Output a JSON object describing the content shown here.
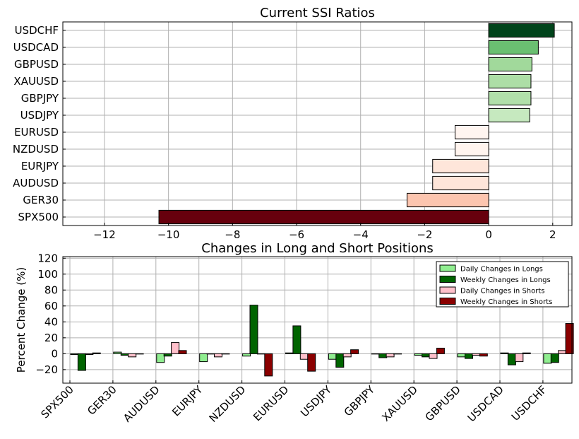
{
  "chart_data": [
    {
      "type": "bar",
      "orientation": "horizontal",
      "title": "Current SSI Ratios",
      "xlabel": "",
      "ylabel": "",
      "categories": [
        "USDCHF",
        "USDCAD",
        "GBPUSD",
        "XAUUSD",
        "GBPJPY",
        "USDJPY",
        "EURUSD",
        "NZDUSD",
        "EURJPY",
        "AUDUSD",
        "GER30",
        "SPX500"
      ],
      "values": [
        2.05,
        1.55,
        1.35,
        1.32,
        1.32,
        1.28,
        -1.05,
        -1.05,
        -1.75,
        -1.75,
        -2.55,
        -10.3
      ],
      "colors": [
        "#00441b",
        "#6abf71",
        "#a1d99b",
        "#addea6",
        "#b1e0aa",
        "#c6e9bf",
        "#fff5f0",
        "#fff4ee",
        "#fee6da",
        "#fee5d9",
        "#fcc5af",
        "#67000d"
      ],
      "xlim": [
        -13.3,
        2.6
      ],
      "xticks": [
        -12,
        -10,
        -8,
        -6,
        -4,
        -2,
        0,
        2
      ],
      "xtick_labels": [
        "−12",
        "−10",
        "−8",
        "−6",
        "−4",
        "−2",
        "0",
        "2"
      ],
      "grid": true
    },
    {
      "type": "bar",
      "title": "Changes in Long and Short Positions",
      "xlabel": "",
      "ylabel": "Percent Change (%)",
      "categories": [
        "SPX500",
        "GER30",
        "AUDUSD",
        "EURJPY",
        "NZDUSD",
        "EURUSD",
        "USDJPY",
        "GBPJPY",
        "XAUUSD",
        "GBPUSD",
        "USDCAD",
        "USDCHF"
      ],
      "ylim": [
        -37,
        122
      ],
      "yticks": [
        -20,
        0,
        20,
        40,
        60,
        80,
        100,
        120
      ],
      "ytick_labels": [
        "−20",
        "0",
        "20",
        "40",
        "60",
        "80",
        "100",
        "120"
      ],
      "grid": true,
      "legend_position": "top-right",
      "series": [
        {
          "name": "Daily Changes in Longs",
          "color": "#90ee90",
          "values": [
            -1,
            2,
            -11,
            -10,
            -3,
            1,
            -7,
            0,
            -2,
            -4,
            1,
            -12
          ]
        },
        {
          "name": "Weekly Changes in Longs",
          "color": "#006400",
          "values": [
            -21,
            -2,
            -3,
            0,
            61,
            35,
            -17,
            -5,
            -4,
            -6,
            -14,
            -11
          ]
        },
        {
          "name": "Daily Changes in Shorts",
          "color": "#ffc0cb",
          "values": [
            -1,
            -4,
            14,
            -4,
            0,
            -7,
            -4,
            -4,
            -6,
            -2,
            -10,
            4
          ]
        },
        {
          "name": "Weekly Changes in Shorts",
          "color": "#8b0000",
          "values": [
            1,
            0,
            4,
            0,
            -28,
            -22,
            5,
            0,
            7,
            -3,
            1,
            38
          ]
        }
      ]
    }
  ]
}
